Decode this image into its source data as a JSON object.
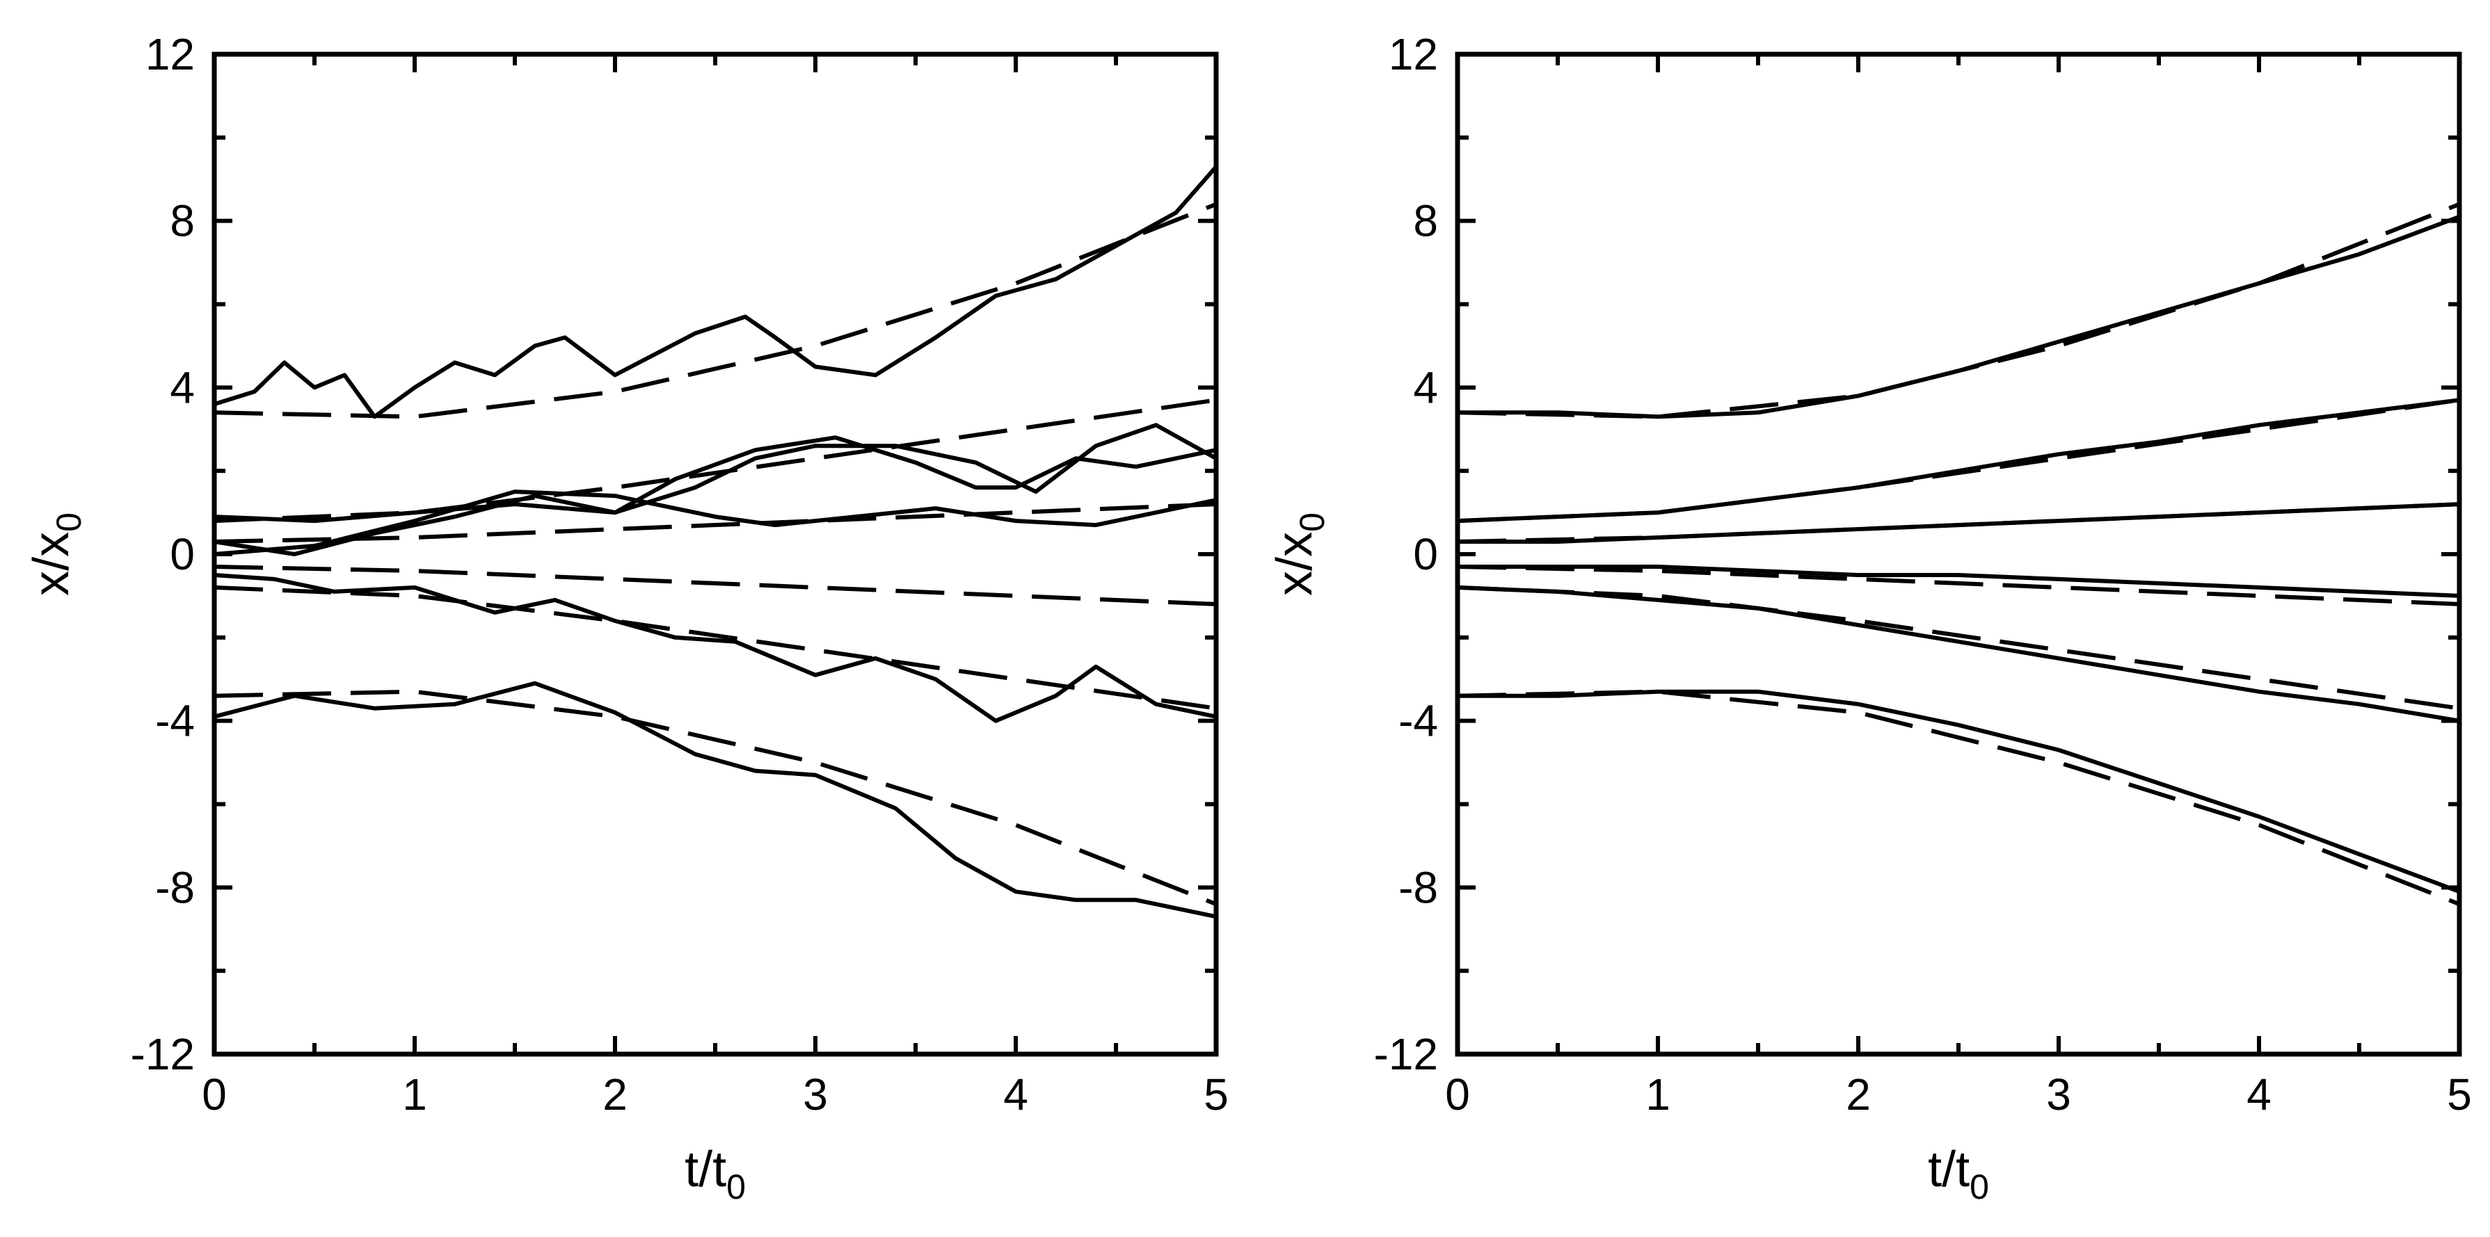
{
  "chart_data": [
    {
      "type": "line",
      "xlabel": "t/t0",
      "xlabel_main": "t/t",
      "xlabel_sub": "0",
      "ylabel": "x/x0",
      "ylabel_main": "x/x",
      "ylabel_sub": "0",
      "xlim": [
        0,
        5
      ],
      "ylim": [
        -12,
        12
      ],
      "xticks": [
        "0",
        "1",
        "2",
        "3",
        "4",
        "5"
      ],
      "yticks": [
        "-12",
        "-8",
        "-4",
        "0",
        "4",
        "8",
        "12"
      ],
      "grid": false,
      "series": [
        {
          "style": "solid",
          "x": [
            0,
            0.2,
            0.35,
            0.5,
            0.65,
            0.8,
            1.0,
            1.2,
            1.4,
            1.6,
            1.75,
            2.0,
            2.2,
            2.4,
            2.65,
            2.8,
            3.0,
            3.3,
            3.6,
            3.9,
            4.2,
            4.5,
            4.8,
            5.0
          ],
          "y": [
            3.6,
            3.9,
            4.6,
            4.0,
            4.3,
            3.3,
            4.0,
            4.6,
            4.3,
            5.0,
            5.2,
            4.3,
            4.8,
            5.3,
            5.7,
            5.2,
            4.5,
            4.3,
            5.2,
            6.2,
            6.6,
            7.4,
            8.2,
            9.3
          ]
        },
        {
          "style": "solid",
          "x": [
            0,
            0.5,
            1.0,
            1.5,
            2.0,
            2.3,
            2.7,
            3.1,
            3.5,
            3.8,
            4.0,
            4.3,
            4.6,
            5.0
          ],
          "y": [
            0.9,
            0.8,
            1.0,
            1.2,
            1.0,
            1.8,
            2.5,
            2.8,
            2.2,
            1.6,
            1.6,
            2.3,
            2.1,
            2.5
          ]
        },
        {
          "style": "solid",
          "x": [
            0,
            0.4,
            0.8,
            1.2,
            1.6,
            2.0,
            2.4,
            2.7,
            3.0,
            3.4,
            3.8,
            4.1,
            4.4,
            4.7,
            5.0
          ],
          "y": [
            0.3,
            0.0,
            0.5,
            0.9,
            1.4,
            1.0,
            1.6,
            2.3,
            2.6,
            2.6,
            2.2,
            1.5,
            2.6,
            3.1,
            2.3
          ]
        },
        {
          "style": "solid",
          "x": [
            0,
            0.5,
            1.0,
            1.5,
            2.0,
            2.5,
            2.8,
            3.2,
            3.6,
            4.0,
            4.4,
            4.7,
            5.0
          ],
          "y": [
            0.0,
            0.2,
            0.8,
            1.5,
            1.4,
            0.9,
            0.7,
            0.9,
            1.1,
            0.8,
            0.7,
            1.0,
            1.3
          ]
        },
        {
          "style": "solid",
          "x": [
            0,
            0.3,
            0.6,
            1.0,
            1.4,
            1.7,
            2.0,
            2.3,
            2.6,
            3.0,
            3.3,
            3.6,
            3.9,
            4.2,
            4.4,
            4.7,
            5.0
          ],
          "y": [
            -0.5,
            -0.6,
            -0.9,
            -0.8,
            -1.4,
            -1.1,
            -1.6,
            -2.0,
            -2.1,
            -2.9,
            -2.5,
            -3.0,
            -4.0,
            -3.4,
            -2.7,
            -3.6,
            -3.9
          ]
        },
        {
          "style": "solid",
          "x": [
            0,
            0.4,
            0.8,
            1.2,
            1.6,
            2.0,
            2.4,
            2.7,
            3.0,
            3.4,
            3.7,
            4.0,
            4.3,
            4.6,
            5.0
          ],
          "y": [
            -3.9,
            -3.4,
            -3.7,
            -3.6,
            -3.1,
            -3.8,
            -4.8,
            -5.2,
            -5.3,
            -6.1,
            -7.3,
            -8.1,
            -8.3,
            -8.3,
            -8.7
          ]
        },
        {
          "style": "dashed",
          "x": [
            0,
            1,
            2,
            3,
            4,
            5
          ],
          "y": [
            3.4,
            3.3,
            3.9,
            5.0,
            6.5,
            8.4
          ]
        },
        {
          "style": "dashed",
          "x": [
            0,
            1,
            2,
            3,
            4,
            5
          ],
          "y": [
            0.8,
            1.0,
            1.6,
            2.3,
            3.0,
            3.7
          ]
        },
        {
          "style": "dashed",
          "x": [
            0,
            1,
            2,
            3,
            4,
            5
          ],
          "y": [
            0.3,
            0.4,
            0.6,
            0.8,
            1.0,
            1.2
          ]
        },
        {
          "style": "dashed",
          "x": [
            0,
            1,
            2,
            3,
            4,
            5
          ],
          "y": [
            -0.3,
            -0.4,
            -0.6,
            -0.8,
            -1.0,
            -1.2
          ]
        },
        {
          "style": "dashed",
          "x": [
            0,
            1,
            2,
            3,
            4,
            5
          ],
          "y": [
            -0.8,
            -1.0,
            -1.6,
            -2.3,
            -3.0,
            -3.7
          ]
        },
        {
          "style": "dashed",
          "x": [
            0,
            1,
            2,
            3,
            4,
            5
          ],
          "y": [
            -3.4,
            -3.3,
            -3.9,
            -5.0,
            -6.5,
            -8.4
          ]
        }
      ]
    },
    {
      "type": "line",
      "xlabel": "t/t0",
      "xlabel_main": "t/t",
      "xlabel_sub": "0",
      "ylabel": "x/x0",
      "ylabel_main": "x/x",
      "ylabel_sub": "0",
      "xlim": [
        0,
        5
      ],
      "ylim": [
        -12,
        12
      ],
      "xticks": [
        "0",
        "1",
        "2",
        "3",
        "4",
        "5"
      ],
      "yticks": [
        "-12",
        "-8",
        "-4",
        "0",
        "4",
        "8",
        "12"
      ],
      "grid": false,
      "series": [
        {
          "style": "solid",
          "x": [
            0,
            0.5,
            1.0,
            1.5,
            2.0,
            2.5,
            3.0,
            3.5,
            4.0,
            4.5,
            5.0
          ],
          "y": [
            3.4,
            3.4,
            3.3,
            3.4,
            3.8,
            4.4,
            5.1,
            5.8,
            6.5,
            7.2,
            8.1
          ]
        },
        {
          "style": "solid",
          "x": [
            0,
            0.5,
            1.0,
            1.5,
            2.0,
            2.5,
            3.0,
            3.5,
            4.0,
            4.5,
            5.0
          ],
          "y": [
            0.8,
            0.9,
            1.0,
            1.3,
            1.6,
            2.0,
            2.4,
            2.7,
            3.1,
            3.4,
            3.7
          ]
        },
        {
          "style": "solid",
          "x": [
            0,
            0.5,
            1.0,
            1.5,
            2.0,
            2.5,
            3.0,
            3.5,
            4.0,
            4.5,
            5.0
          ],
          "y": [
            0.3,
            0.3,
            0.4,
            0.5,
            0.6,
            0.7,
            0.8,
            0.9,
            1.0,
            1.1,
            1.2
          ]
        },
        {
          "style": "solid",
          "x": [
            0,
            0.5,
            1.0,
            1.5,
            2.0,
            2.5,
            3.0,
            3.5,
            4.0,
            4.5,
            5.0
          ],
          "y": [
            -0.3,
            -0.3,
            -0.3,
            -0.4,
            -0.5,
            -0.5,
            -0.6,
            -0.7,
            -0.8,
            -0.9,
            -1.0
          ]
        },
        {
          "style": "solid",
          "x": [
            0,
            0.5,
            1.0,
            1.5,
            2.0,
            2.5,
            3.0,
            3.5,
            4.0,
            4.5,
            5.0
          ],
          "y": [
            -0.8,
            -0.9,
            -1.1,
            -1.3,
            -1.7,
            -2.1,
            -2.5,
            -2.9,
            -3.3,
            -3.6,
            -4.0
          ]
        },
        {
          "style": "solid",
          "x": [
            0,
            0.5,
            1.0,
            1.5,
            2.0,
            2.5,
            3.0,
            3.5,
            4.0,
            4.5,
            5.0
          ],
          "y": [
            -3.4,
            -3.4,
            -3.3,
            -3.3,
            -3.6,
            -4.1,
            -4.7,
            -5.5,
            -6.3,
            -7.2,
            -8.1
          ]
        },
        {
          "style": "dashed",
          "x": [
            0,
            1,
            2,
            3,
            4,
            5
          ],
          "y": [
            3.4,
            3.3,
            3.8,
            5.0,
            6.5,
            8.4
          ]
        },
        {
          "style": "dashed",
          "x": [
            0,
            1,
            2,
            3,
            4,
            5
          ],
          "y": [
            0.8,
            1.0,
            1.6,
            2.3,
            3.0,
            3.7
          ]
        },
        {
          "style": "dashed",
          "x": [
            0,
            1,
            2,
            3,
            4,
            5
          ],
          "y": [
            0.3,
            0.4,
            0.6,
            0.8,
            1.0,
            1.2
          ]
        },
        {
          "style": "dashed",
          "x": [
            0,
            1,
            2,
            3,
            4,
            5
          ],
          "y": [
            -0.3,
            -0.4,
            -0.6,
            -0.8,
            -1.0,
            -1.2
          ]
        },
        {
          "style": "dashed",
          "x": [
            0,
            1,
            2,
            3,
            4,
            5
          ],
          "y": [
            -0.8,
            -1.0,
            -1.6,
            -2.3,
            -3.0,
            -3.7
          ]
        },
        {
          "style": "dashed",
          "x": [
            0,
            1,
            2,
            3,
            4,
            5
          ],
          "y": [
            -3.4,
            -3.3,
            -3.8,
            -5.0,
            -6.5,
            -8.4
          ]
        }
      ]
    }
  ]
}
